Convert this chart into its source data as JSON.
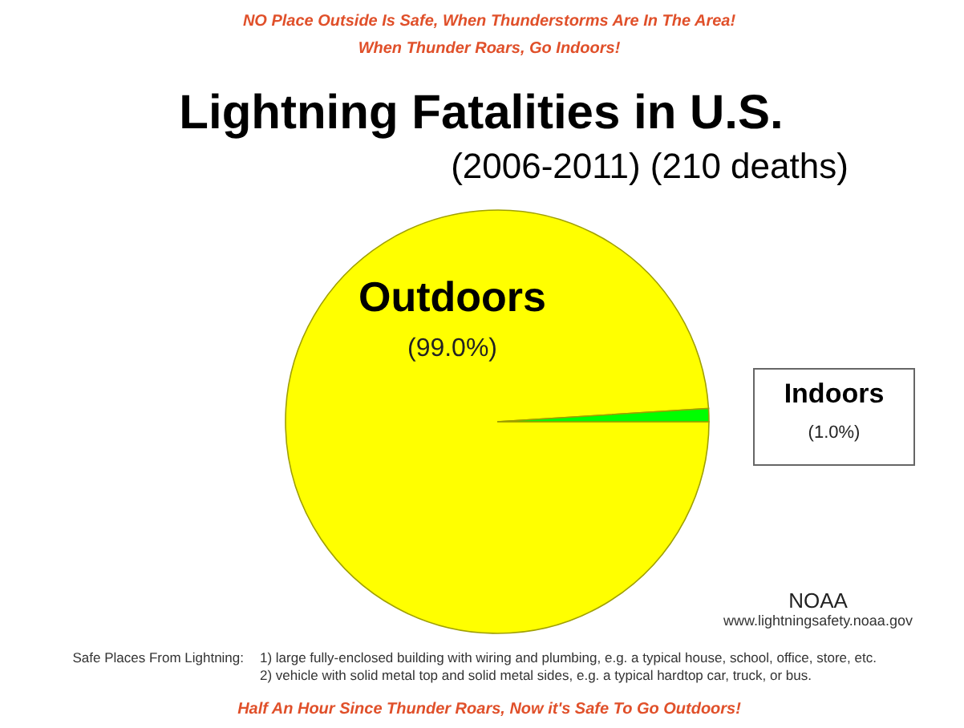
{
  "chart_data": {
    "type": "pie",
    "title": "Lightning Fatalities in U.S.",
    "subtitle": "(2006-2011) (210 deaths)",
    "categories": [
      "Outdoors",
      "Indoors"
    ],
    "values": [
      99.0,
      1.0
    ],
    "colors": [
      "#ffff00",
      "#00ff00"
    ],
    "value_labels": [
      "(99.0%)",
      "(1.0%)"
    ],
    "annotations": [
      "NO Place Outside Is Safe, When Thunderstorms Are In The Area!",
      "When Thunder Roars, Go Indoors!",
      "NOAA",
      "www.lightningsafety.noaa.gov",
      "Safe Places From Lightning:",
      "1) large fully-enclosed building with wiring and plumbing, e.g. a typical house, school, office, store, etc.",
      "2) vehicle with solid metal top and solid metal sides, e.g. a typical hardtop car, truck, or bus.",
      "Half An Hour Since Thunder Roars, Now it's Safe To Go Outdoors!"
    ],
    "data_labels": false
  }
}
